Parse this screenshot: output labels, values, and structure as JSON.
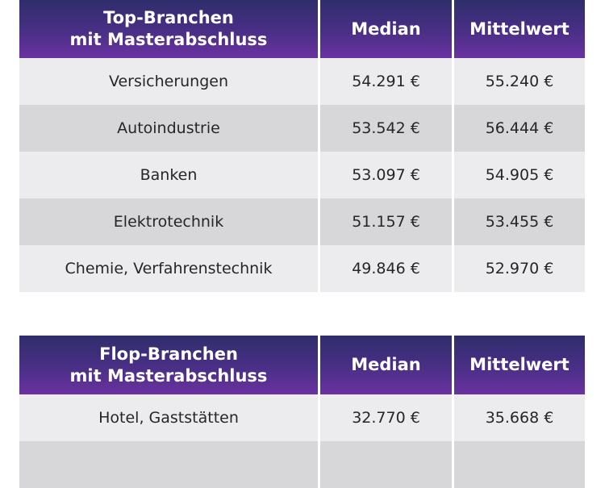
{
  "top_table": {
    "title_line1": "Top-Branchen",
    "title_line2": "mit Masterabschluss",
    "col_median": "Median",
    "col_mean": "Mittelwert",
    "rows": [
      {
        "branch": "Versicherungen",
        "median": "54.291 €",
        "mean": "55.240 €"
      },
      {
        "branch": "Autoindustrie",
        "median": "53.542 €",
        "mean": "56.444 €"
      },
      {
        "branch": "Banken",
        "median": "53.097 €",
        "mean": "54.905 €"
      },
      {
        "branch": "Elektrotechnik",
        "median": "51.157 €",
        "mean": "53.455 €"
      },
      {
        "branch": "Chemie, Verfahrenstechnik",
        "median": "49.846 €",
        "mean": "52.970 €"
      }
    ]
  },
  "flop_table": {
    "title_line1": "Flop-Branchen",
    "title_line2": "mit Masterabschluss",
    "col_median": "Median",
    "col_mean": "Mittelwert",
    "rows": [
      {
        "branch": "Hotel, Gaststätten",
        "median": "32.770 €",
        "mean": "35.668 €"
      }
    ]
  },
  "colors": {
    "header_gradient_top": "#2f2d6b",
    "header_gradient_bottom": "#6a32a1",
    "row_light": "#ececef",
    "row_dark": "#d7d7da"
  }
}
